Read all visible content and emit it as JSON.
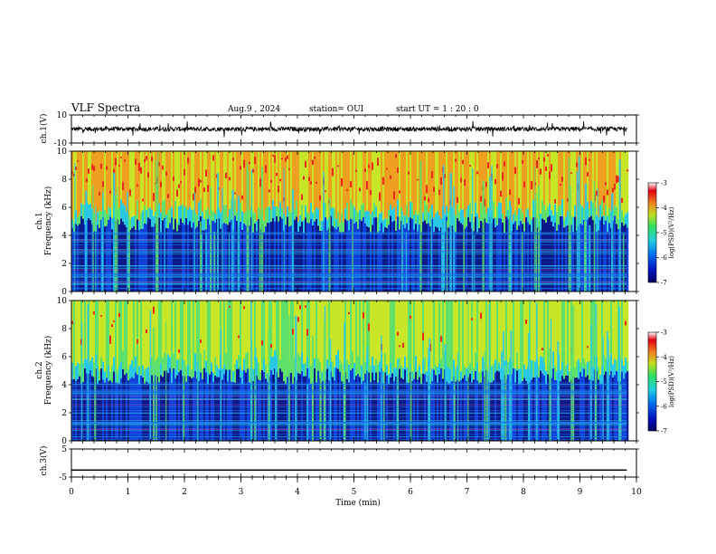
{
  "header": {
    "title": "VLF Spectra",
    "date": "Aug.9  , 2024",
    "station": "station= OUI",
    "start": "start  UT =   1 : 20 : 0"
  },
  "colors": {
    "trace": "#000000",
    "spectrogram_bands": [
      "#0a1a8a",
      "#1040d8",
      "#1e7ff0",
      "#29c9e6",
      "#5ee06a",
      "#c8e628",
      "#f0a020",
      "#e82a1a"
    ]
  },
  "chart_data": [
    {
      "type": "line",
      "name": "ch1-waveform",
      "ylabel": "ch.1(V)",
      "y_ticks": [
        "10",
        "-10"
      ],
      "ylim": [
        -10,
        10
      ],
      "xlim": [
        0,
        10
      ],
      "baseline": 0,
      "end_time_min": 9.83
    },
    {
      "type": "heatmap",
      "name": "ch1-spectrogram",
      "ylabel": "ch.1\nFrequency (kHz)",
      "ylim": [
        0,
        10
      ],
      "y_ticks": [
        "0",
        "2",
        "4",
        "6",
        "8",
        "10"
      ],
      "xlim": [
        0,
        10
      ],
      "end_time_min": 9.83,
      "colorbar": {
        "label": "log(PSD)(V²/Hz)",
        "ticks": [
          "-3",
          "-4",
          "-5",
          "-6",
          "-7"
        ],
        "range": [
          -7,
          -3
        ]
      }
    },
    {
      "type": "heatmap",
      "name": "ch2-spectrogram",
      "ylabel": "ch.2\nFrequency (kHz)",
      "ylim": [
        0,
        10
      ],
      "y_ticks": [
        "0",
        "2",
        "4",
        "6",
        "8",
        "10"
      ],
      "xlim": [
        0,
        10
      ],
      "end_time_min": 9.83,
      "colorbar": {
        "label": "log(PSD)(V²/Hz)",
        "ticks": [
          "-3",
          "-4",
          "-5",
          "-6",
          "-7"
        ],
        "range": [
          -7,
          -3
        ]
      }
    },
    {
      "type": "line",
      "name": "ch3-waveform",
      "ylabel": "ch.3(V)",
      "y_ticks": [
        "5",
        "-5"
      ],
      "ylim": [
        -5,
        5
      ],
      "xlim": [
        0,
        10
      ],
      "baseline": -2.5,
      "end_time_min": 9.83
    }
  ],
  "xaxis": {
    "label": "Time (min)",
    "ticks": [
      "0",
      "1",
      "2",
      "3",
      "4",
      "5",
      "6",
      "7",
      "8",
      "9",
      "10"
    ]
  }
}
